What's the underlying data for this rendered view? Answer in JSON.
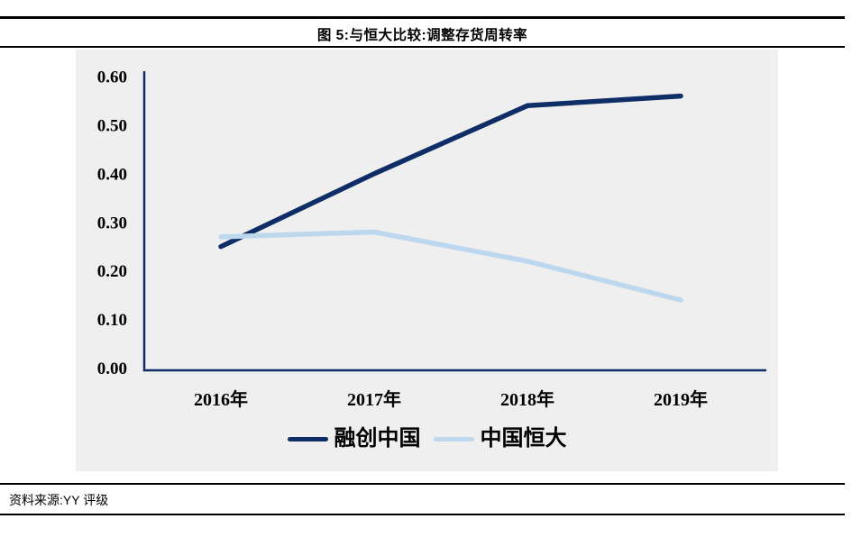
{
  "header": {
    "title": "图 5:与恒大比较:调整存货周转率"
  },
  "footer": {
    "source": "资料来源:YY 评级"
  },
  "chart_data": {
    "type": "line",
    "title": "图 5:与恒大比较:调整存货周转率",
    "categories": [
      "2016年",
      "2017年",
      "2018年",
      "2019年"
    ],
    "series": [
      {
        "name": "融创中国",
        "color": "#0f2d66",
        "values": [
          0.25,
          0.4,
          0.54,
          0.56
        ]
      },
      {
        "name": "中国恒大",
        "color": "#bdd7ee",
        "values": [
          0.27,
          0.28,
          0.22,
          0.14
        ]
      }
    ],
    "xlabel": "",
    "ylabel": "",
    "ylim": [
      0,
      0.6
    ],
    "y_ticks": [
      "0.00",
      "0.10",
      "0.20",
      "0.30",
      "0.40",
      "0.50",
      "0.60"
    ],
    "grid": false,
    "legend_position": "bottom",
    "plot_background": "#efefef",
    "axis_color": "#0f2d66"
  }
}
